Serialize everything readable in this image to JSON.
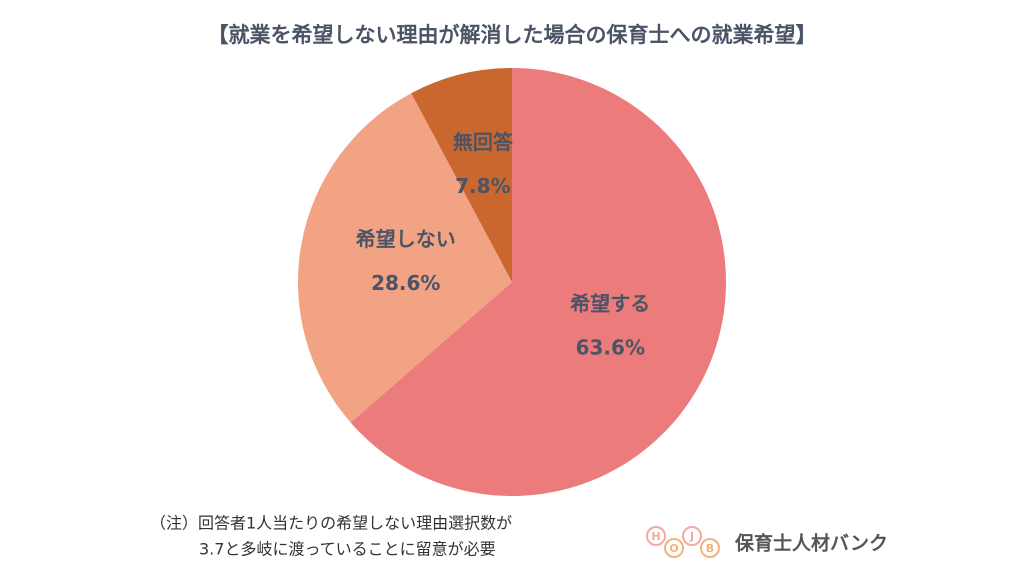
{
  "chart_data": {
    "type": "pie",
    "title": "【就業を希望しない理由が解消した場合の保育士への就業希望】",
    "categories": [
      "希望する",
      "希望しない",
      "無回答"
    ],
    "values": [
      63.6,
      28.6,
      7.8
    ],
    "value_labels": [
      "63.6%",
      "28.6%",
      "7.8%"
    ],
    "colors": [
      "#ec7b7b",
      "#f2a383",
      "#c9672f"
    ]
  },
  "note": [
    "（注）回答者1人当たりの希望しない理由選択数が",
    "3.7と多岐に渡っていることに留意が必要"
  ],
  "logo": {
    "letters": [
      "H",
      "O",
      "J",
      "B"
    ],
    "text": "保育士人材バンク"
  }
}
